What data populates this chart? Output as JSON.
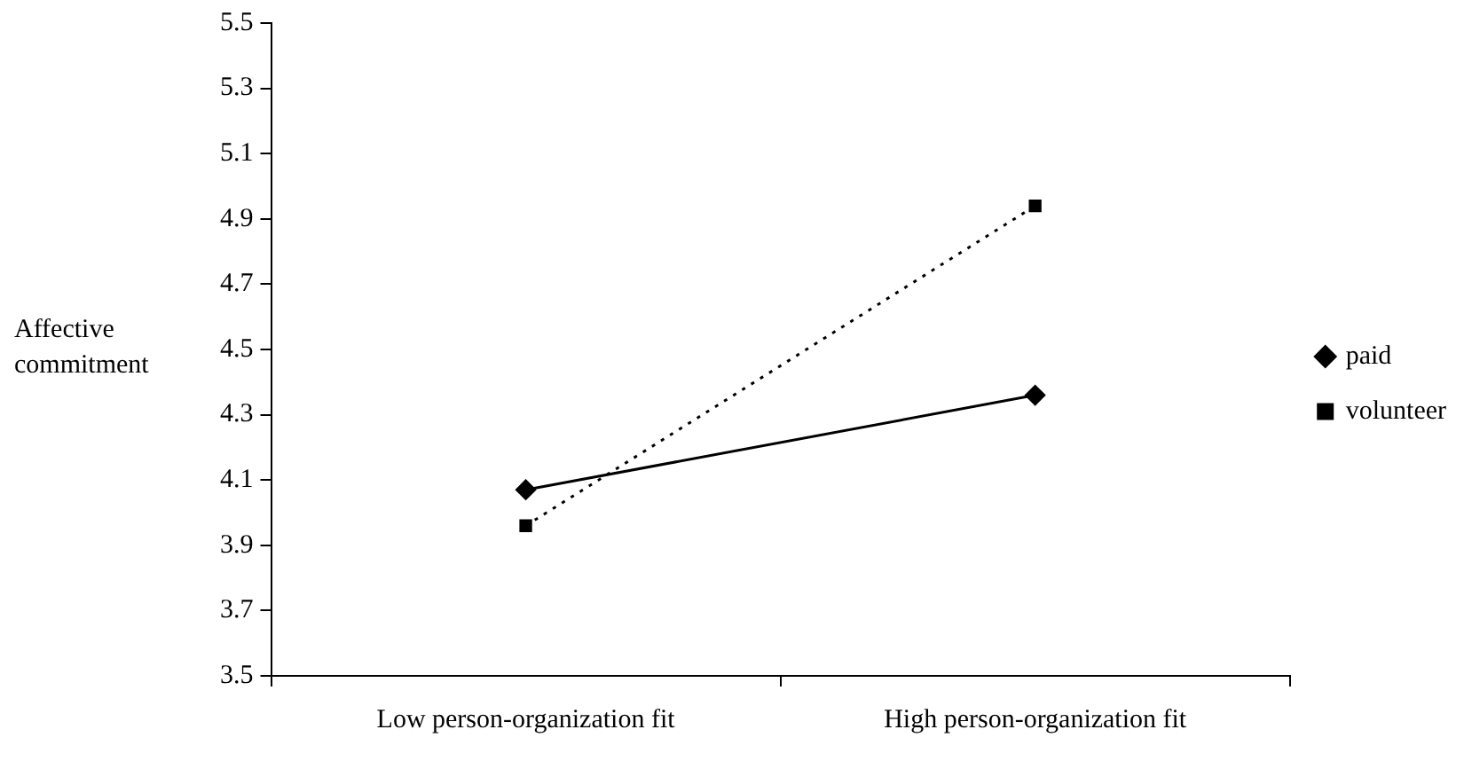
{
  "chart_data": {
    "type": "line",
    "ylabel": "Affective commitment",
    "categories": [
      "Low person-organization fit",
      "High person-organization fit"
    ],
    "series": [
      {
        "name": "paid",
        "color": "#000000",
        "values": [
          4.07,
          4.36
        ],
        "marker": "diamond",
        "line_style": "solid"
      },
      {
        "name": "volunteer",
        "color": "#000000",
        "values": [
          3.96,
          4.94
        ],
        "marker": "square",
        "line_style": "dotted"
      }
    ],
    "ylim": [
      3.5,
      5.5
    ],
    "yticks": [
      3.5,
      3.7,
      3.9,
      4.1,
      4.3,
      4.5,
      4.7,
      4.9,
      5.1,
      5.3,
      5.5
    ],
    "grid": false,
    "legend": "right"
  }
}
